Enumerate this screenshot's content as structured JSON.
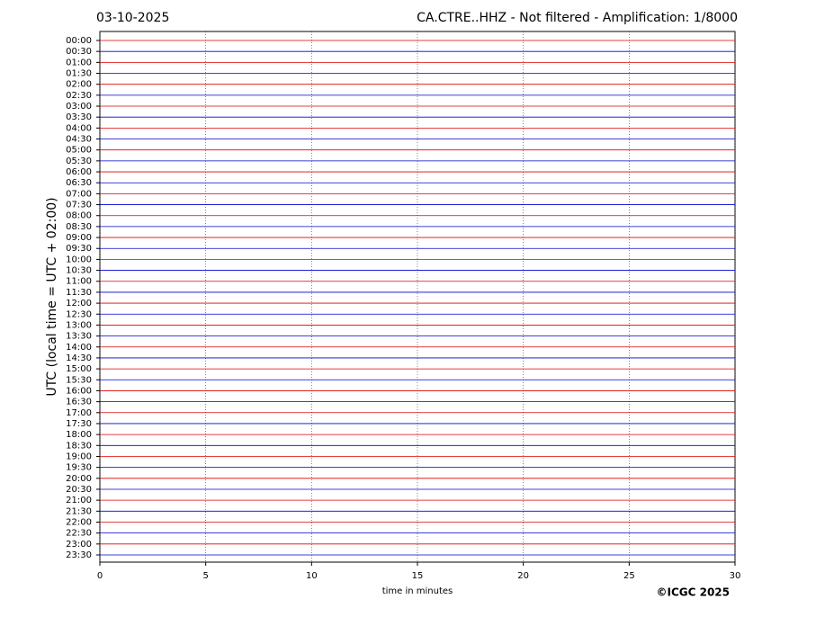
{
  "chart_data": {
    "type": "helicorder",
    "date": "03-10-2025",
    "title": "CA.CTRE..HHZ - Not filtered - Amplification: 1/8000",
    "xlabel": "time in minutes",
    "ylabel": "UTC (local time = UTC + 02:00)",
    "copyright": "©ICGC 2025",
    "xlim": [
      0,
      30
    ],
    "xticks": [
      0,
      5,
      10,
      15,
      20,
      25,
      30
    ],
    "grid": true,
    "trace_colors": [
      "#dd0000",
      "#0000cc"
    ],
    "categories": [
      "00:00",
      "00:30",
      "01:00",
      "01:30",
      "02:00",
      "02:30",
      "03:00",
      "03:30",
      "04:00",
      "04:30",
      "05:00",
      "05:30",
      "06:00",
      "06:30",
      "07:00",
      "07:30",
      "08:00",
      "08:30",
      "09:00",
      "09:30",
      "10:00",
      "10:30",
      "11:00",
      "11:30",
      "12:00",
      "12:30",
      "13:00",
      "13:30",
      "14:00",
      "14:30",
      "15:00",
      "15:30",
      "16:00",
      "16:30",
      "17:00",
      "17:30",
      "18:00",
      "18:30",
      "19:00",
      "19:30",
      "20:00",
      "20:30",
      "21:00",
      "21:30",
      "22:00",
      "22:30",
      "23:00",
      "23:30"
    ]
  }
}
